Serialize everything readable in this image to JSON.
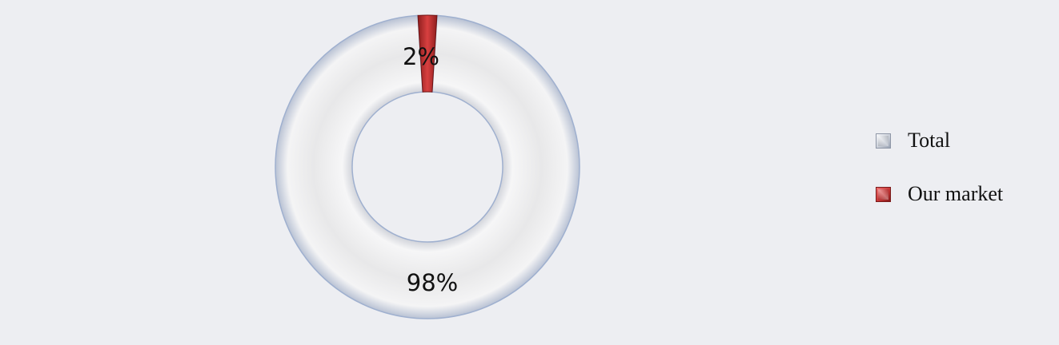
{
  "chart_data": {
    "type": "pie",
    "variant": "donut",
    "categories": [
      "Total",
      "Our market"
    ],
    "values": [
      98,
      2
    ],
    "data_labels": [
      "98%",
      "2%"
    ],
    "colors": [
      "#e6e6e7",
      "#c0302f"
    ],
    "legend_position": "right"
  },
  "legend": {
    "items": [
      {
        "label": "Total"
      },
      {
        "label": "Our market"
      }
    ]
  }
}
